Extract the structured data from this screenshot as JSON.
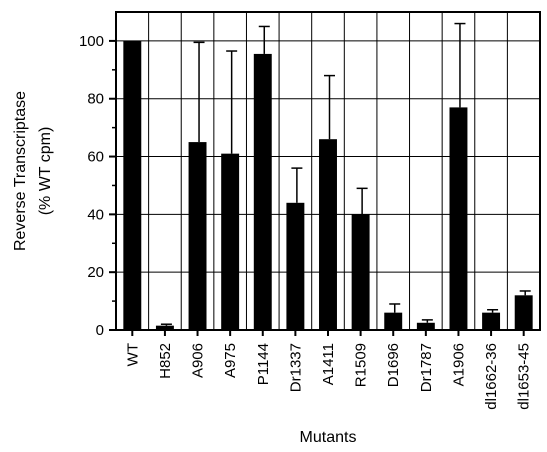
{
  "chart_data": {
    "type": "bar",
    "title": "",
    "xlabel": "Mutants",
    "ylabel_lines": [
      "Reverse Transcriptase",
      "(% WT cpm)"
    ],
    "ylim": [
      0,
      110
    ],
    "yticks": [
      0,
      20,
      40,
      60,
      80,
      100
    ],
    "grid": true,
    "legend": "none",
    "bar_color": "#000000",
    "categories": [
      "WT",
      "H852",
      "A906",
      "A975",
      "P1144",
      "Dr1337",
      "A1411",
      "R1509",
      "D1696",
      "Dr1787",
      "A1906",
      "dl1662-36",
      "dl1653-45"
    ],
    "values": [
      100,
      1.5,
      65,
      61,
      95.5,
      44,
      66,
      40,
      6,
      2.5,
      77,
      6,
      12
    ],
    "error_upper": [
      0,
      0.5,
      34.5,
      35.5,
      9.5,
      12,
      22,
      9,
      3,
      1,
      29,
      1,
      1.5
    ]
  }
}
